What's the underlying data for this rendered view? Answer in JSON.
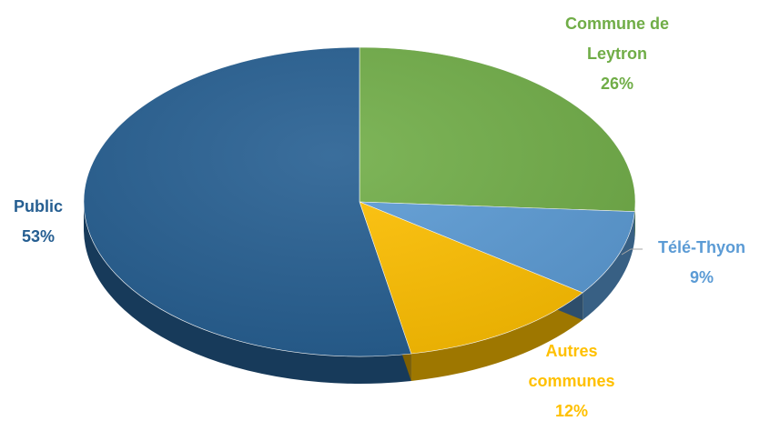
{
  "chart_data": {
    "type": "pie",
    "style": "3d",
    "slices": [
      {
        "name": "Commune de Leytron",
        "label_lines": [
          "Commune de",
          "Leytron"
        ],
        "value": 26,
        "value_label": "26%",
        "color": "#70ad47"
      },
      {
        "name": "Télé-Thyon",
        "label_lines": [
          "Télé-Thyon"
        ],
        "value": 9,
        "value_label": "9%",
        "color": "#5b9bd5"
      },
      {
        "name": "Autres communes",
        "label_lines": [
          "Autres",
          "communes"
        ],
        "value": 12,
        "value_label": "12%",
        "color": "#ffc000"
      },
      {
        "name": "Public",
        "label_lines": [
          "Public"
        ],
        "value": 53,
        "value_label": "53%",
        "color": "#255e91"
      }
    ],
    "legend": "none"
  }
}
